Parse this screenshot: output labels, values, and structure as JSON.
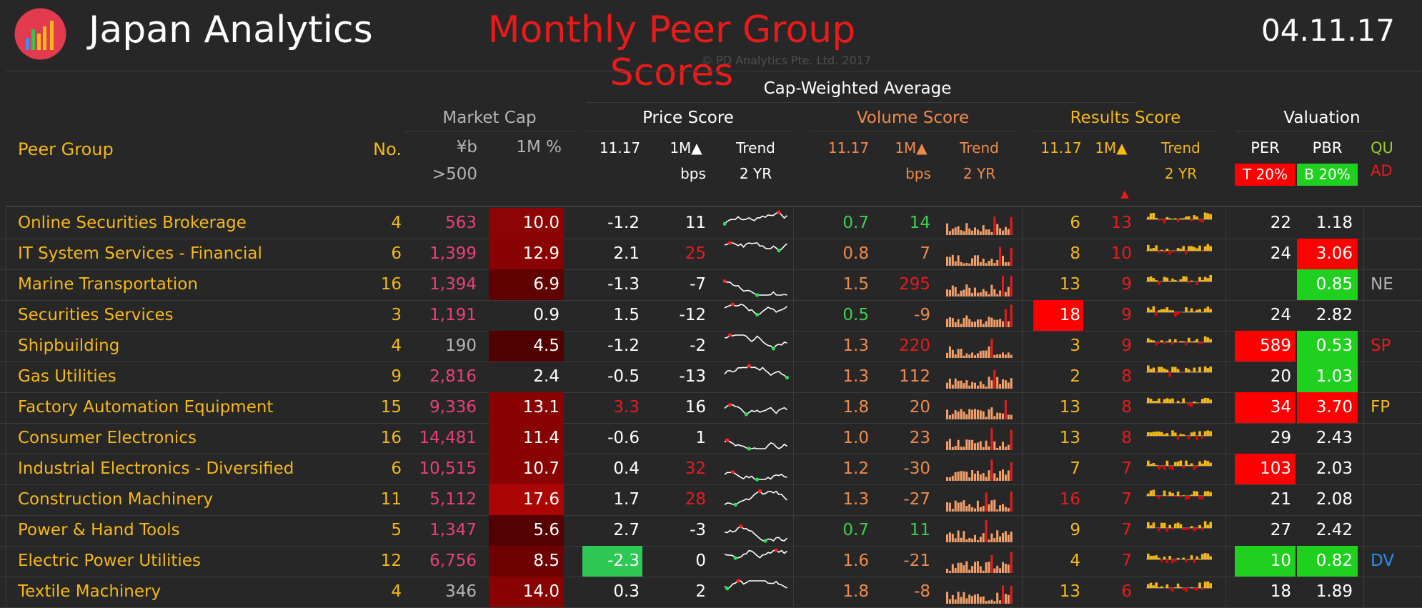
{
  "header": {
    "app_title": "Japan Analytics",
    "report_title": "Monthly Peer Group Scores",
    "date": "04.11.17",
    "copyright": "© PD Analytics Pte. Ltd. 2017",
    "accent_red": "#e81b1b",
    "accent_gold": "#f5b81b"
  },
  "columns": {
    "cap_weighted_avg": "Cap-Weighted Average",
    "peer_group": "Peer Group",
    "no": "No.",
    "market_cap": "Market Cap",
    "mc_yb": "¥b",
    "mc_min": ">500",
    "mc_1m": "1M %",
    "price_score": "Price Score",
    "volume_score": "Volume Score",
    "results_score": "Results Score",
    "valuation": "Valuation",
    "period": "11.17",
    "one_m": "1M▲",
    "bps": "bps",
    "trend": "Trend",
    "two_yr": "2 YR",
    "results_sort_arrow": "▲",
    "per": "PER",
    "pbr": "PBR",
    "per_band": "T 20%",
    "pbr_band": "B 20%",
    "qu": "QU",
    "ad": "AD"
  },
  "rows": [
    {
      "name": "Online Securities Brokerage",
      "no": "4",
      "cap": "563",
      "cap_color": "mag",
      "m1": "10.0",
      "m1_shade": "#8c0404",
      "ps": "-1.2",
      "ps_color": "wht",
      "ps_bg": "",
      "pm": "11",
      "pm_color": "wht",
      "vs": "0.7",
      "vs_color": "grn",
      "vm": "14",
      "vm_color": "grn",
      "rs": "6",
      "rs_bg": "",
      "rm": "13",
      "per": "22",
      "per_bg": "",
      "pbr": "1.18",
      "pbr_bg": "",
      "flag": "",
      "flag_color": "gry"
    },
    {
      "name": "IT System Services - Financial",
      "no": "6",
      "cap": "1,399",
      "cap_color": "mag",
      "m1": "12.9",
      "m1_shade": "#8a0303",
      "ps": "2.1",
      "ps_color": "wht",
      "ps_bg": "",
      "pm": "25",
      "pm_color": "red",
      "vs": "0.8",
      "vs_color": "org",
      "vm": "7",
      "vm_color": "org",
      "rs": "8",
      "rs_bg": "",
      "rm": "10",
      "per": "24",
      "per_bg": "",
      "pbr": "3.06",
      "pbr_bg": "#ff0000",
      "flag": "",
      "flag_color": "gry"
    },
    {
      "name": "Marine Transportation",
      "no": "16",
      "cap": "1,394",
      "cap_color": "mag",
      "m1": "6.9",
      "m1_shade": "#600202",
      "ps": "-1.3",
      "ps_color": "wht",
      "ps_bg": "",
      "pm": "-7",
      "pm_color": "wht",
      "vs": "1.5",
      "vs_color": "org",
      "vm": "295",
      "vm_color": "red",
      "rs": "13",
      "rs_bg": "",
      "rm": "9",
      "per": "",
      "per_bg": "",
      "pbr": "0.85",
      "pbr_bg": "#1fd01f",
      "flag": "NE",
      "flag_color": "gry"
    },
    {
      "name": "Securities Services",
      "no": "3",
      "cap": "1,191",
      "cap_color": "mag",
      "m1": "0.9",
      "m1_shade": "",
      "ps": "1.5",
      "ps_color": "wht",
      "ps_bg": "",
      "pm": "-12",
      "pm_color": "wht",
      "vs": "0.5",
      "vs_color": "grn",
      "vm": "-9",
      "vm_color": "org",
      "rs": "18",
      "rs_bg": "#ff0000",
      "rm": "9",
      "per": "24",
      "per_bg": "",
      "pbr": "2.82",
      "pbr_bg": "",
      "flag": "",
      "flag_color": "gry"
    },
    {
      "name": "Shipbuilding",
      "no": "4",
      "cap": "190",
      "cap_color": "gry",
      "m1": "4.5",
      "m1_shade": "#520101",
      "ps": "-1.2",
      "ps_color": "wht",
      "ps_bg": "",
      "pm": "-2",
      "pm_color": "wht",
      "vs": "1.3",
      "vs_color": "org",
      "vm": "220",
      "vm_color": "red",
      "rs": "3",
      "rs_bg": "",
      "rm": "9",
      "per": "589",
      "per_bg": "#ff0000",
      "pbr": "0.53",
      "pbr_bg": "#1fd01f",
      "flag": "SP",
      "flag_color": "red"
    },
    {
      "name": "Gas Utilities",
      "no": "9",
      "cap": "2,816",
      "cap_color": "mag",
      "m1": "2.4",
      "m1_shade": "",
      "ps": "-0.5",
      "ps_color": "wht",
      "ps_bg": "",
      "pm": "-13",
      "pm_color": "wht",
      "vs": "1.3",
      "vs_color": "org",
      "vm": "112",
      "vm_color": "org",
      "rs": "2",
      "rs_bg": "",
      "rm": "8",
      "per": "20",
      "per_bg": "",
      "pbr": "1.03",
      "pbr_bg": "#1fd01f",
      "flag": "",
      "flag_color": "gry"
    },
    {
      "name": "Factory Automation Equipment",
      "no": "15",
      "cap": "9,336",
      "cap_color": "mag",
      "m1": "13.1",
      "m1_shade": "#8a0303",
      "ps": "3.3",
      "ps_color": "red",
      "ps_bg": "",
      "pm": "16",
      "pm_color": "wht",
      "vs": "1.8",
      "vs_color": "org",
      "vm": "20",
      "vm_color": "org",
      "rs": "13",
      "rs_bg": "",
      "rm": "8",
      "per": "34",
      "per_bg": "#ff0000",
      "pbr": "3.70",
      "pbr_bg": "#ff0000",
      "flag": "FP",
      "flag_color": "yel"
    },
    {
      "name": "Consumer Electronics",
      "no": "16",
      "cap": "14,481",
      "cap_color": "mag",
      "m1": "11.4",
      "m1_shade": "#8a0303",
      "ps": "-0.6",
      "ps_color": "wht",
      "ps_bg": "",
      "pm": "1",
      "pm_color": "wht",
      "vs": "1.0",
      "vs_color": "org",
      "vm": "23",
      "vm_color": "org",
      "rs": "13",
      "rs_bg": "",
      "rm": "8",
      "per": "29",
      "per_bg": "",
      "pbr": "2.43",
      "pbr_bg": "",
      "flag": "",
      "flag_color": "gry"
    },
    {
      "name": "Industrial Electronics - Diversified",
      "no": "6",
      "cap": "10,515",
      "cap_color": "mag",
      "m1": "10.7",
      "m1_shade": "#8a0303",
      "ps": "0.4",
      "ps_color": "wht",
      "ps_bg": "",
      "pm": "32",
      "pm_color": "red",
      "vs": "1.2",
      "vs_color": "org",
      "vm": "-30",
      "vm_color": "org",
      "rs": "7",
      "rs_bg": "",
      "rm": "7",
      "per": "103",
      "per_bg": "#ff0000",
      "pbr": "2.03",
      "pbr_bg": "",
      "flag": "",
      "flag_color": "gry"
    },
    {
      "name": "Construction Machinery",
      "no": "11",
      "cap": "5,112",
      "cap_color": "mag",
      "m1": "17.6",
      "m1_shade": "#ac0505",
      "ps": "1.7",
      "ps_color": "wht",
      "ps_bg": "",
      "pm": "28",
      "pm_color": "red",
      "vs": "1.3",
      "vs_color": "org",
      "vm": "-27",
      "vm_color": "org",
      "rs": "16",
      "rs_bg": "",
      "rs_color": "red",
      "rm": "7",
      "per": "21",
      "per_bg": "",
      "pbr": "2.08",
      "pbr_bg": "",
      "flag": "",
      "flag_color": "gry"
    },
    {
      "name": "Power & Hand Tools",
      "no": "5",
      "cap": "1,347",
      "cap_color": "mag",
      "m1": "5.6",
      "m1_shade": "#550101",
      "ps": "2.7",
      "ps_color": "wht",
      "ps_bg": "",
      "pm": "-3",
      "pm_color": "wht",
      "vs": "0.7",
      "vs_color": "grn",
      "vm": "11",
      "vm_color": "grn",
      "rs": "9",
      "rs_bg": "",
      "rm": "7",
      "per": "27",
      "per_bg": "",
      "pbr": "2.42",
      "pbr_bg": "",
      "flag": "",
      "flag_color": "gry"
    },
    {
      "name": "Electric Power Utilities",
      "no": "12",
      "cap": "6,756",
      "cap_color": "mag",
      "m1": "8.5",
      "m1_shade": "#6e0202",
      "ps": "-2.3",
      "ps_color": "wht",
      "ps_bg": "#2ec955",
      "pm": "0",
      "pm_color": "wht",
      "vs": "1.6",
      "vs_color": "org",
      "vm": "-21",
      "vm_color": "org",
      "rs": "4",
      "rs_bg": "",
      "rm": "7",
      "per": "10",
      "per_bg": "#1fd01f",
      "pbr": "0.82",
      "pbr_bg": "#1fd01f",
      "flag": "DV",
      "flag_color": "blu"
    },
    {
      "name": "Textile Machinery",
      "no": "4",
      "cap": "346",
      "cap_color": "gry",
      "m1": "14.0",
      "m1_shade": "#8a0303",
      "ps": "0.3",
      "ps_color": "wht",
      "ps_bg": "",
      "pm": "2",
      "pm_color": "wht",
      "vs": "1.8",
      "vs_color": "org",
      "vm": "-8",
      "vm_color": "org",
      "rs": "13",
      "rs_bg": "",
      "rm": "6",
      "per": "18",
      "per_bg": "",
      "pbr": "1.89",
      "pbr_bg": "",
      "flag": "",
      "flag_color": "gry"
    }
  ]
}
